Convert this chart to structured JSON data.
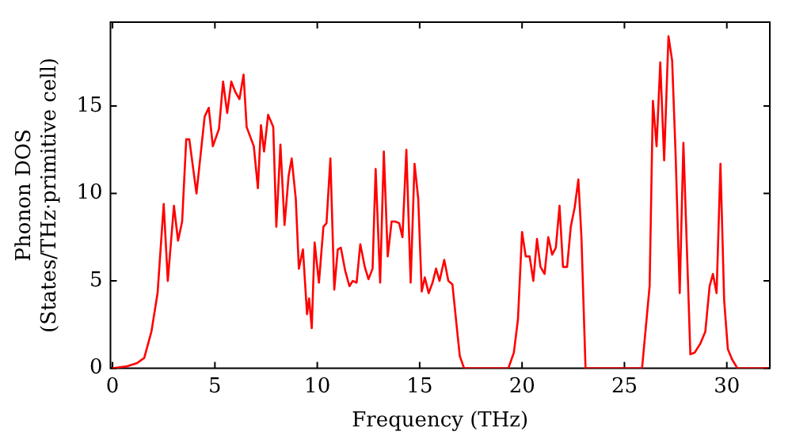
{
  "chart_data": {
    "type": "line",
    "xlabel": "Frequency (THz)",
    "ylabel": "Phonon DOS\n(States/THz·primitive cell)",
    "xlim": [
      -0.1,
      32.1
    ],
    "ylim": [
      0,
      19.8
    ],
    "xticks": [
      0,
      5,
      10,
      15,
      20,
      25,
      30
    ],
    "yticks": [
      0,
      5,
      10,
      15
    ],
    "grid": false,
    "legend": false,
    "marker": "none",
    "line_style": "solid",
    "series": [
      {
        "color": "#ff0000",
        "x": [
          0,
          0.65,
          1.2,
          1.55,
          1.9,
          2.2,
          2.5,
          2.7,
          3.0,
          3.2,
          3.4,
          3.6,
          3.75,
          4.1,
          4.5,
          4.7,
          4.9,
          5.2,
          5.4,
          5.6,
          5.8,
          6.0,
          6.2,
          6.4,
          6.55,
          6.9,
          7.1,
          7.25,
          7.4,
          7.6,
          7.85,
          8.0,
          8.2,
          8.4,
          8.6,
          8.75,
          8.95,
          9.1,
          9.3,
          9.5,
          9.6,
          9.73,
          9.87,
          10.08,
          10.3,
          10.45,
          10.64,
          10.83,
          11.0,
          11.15,
          11.36,
          11.57,
          11.73,
          11.92,
          12.1,
          12.32,
          12.5,
          12.7,
          12.85,
          13.07,
          13.25,
          13.44,
          13.63,
          13.8,
          14.0,
          14.16,
          14.35,
          14.56,
          14.75,
          14.93,
          15.1,
          15.25,
          15.44,
          15.63,
          15.8,
          15.97,
          16.2,
          16.4,
          16.6,
          16.8,
          16.96,
          17.17,
          19.33,
          19.6,
          19.8,
          20.0,
          20.18,
          20.37,
          20.55,
          20.73,
          20.9,
          21.1,
          21.28,
          21.47,
          21.65,
          21.83,
          22.0,
          22.2,
          22.38,
          22.57,
          22.75,
          22.9,
          23.1,
          25.86,
          26.23,
          26.39,
          26.57,
          26.75,
          26.94,
          27.15,
          27.33,
          27.5,
          27.7,
          27.88,
          28.06,
          28.22,
          28.43,
          28.7,
          28.95,
          29.16,
          29.32,
          29.5,
          29.69,
          29.87,
          30.05,
          30.26,
          30.52,
          32.0
        ],
        "values": [
          0,
          0.1,
          0.3,
          0.6,
          2.1,
          4.3,
          9.4,
          5.0,
          9.3,
          7.3,
          8.4,
          13.1,
          13.1,
          10.0,
          14.4,
          14.9,
          12.7,
          13.7,
          16.4,
          14.6,
          16.4,
          15.8,
          15.4,
          16.8,
          13.8,
          12.7,
          10.3,
          13.9,
          12.4,
          14.5,
          13.8,
          8.1,
          12.8,
          8.2,
          11.0,
          12.0,
          9.7,
          5.7,
          6.8,
          3.1,
          4.0,
          2.3,
          7.2,
          4.9,
          8.1,
          8.3,
          12.0,
          4.5,
          6.8,
          6.9,
          5.6,
          4.7,
          5.0,
          4.9,
          7.1,
          5.8,
          5.1,
          5.7,
          11.4,
          4.9,
          12.4,
          6.4,
          8.4,
          8.4,
          8.3,
          7.5,
          12.5,
          4.9,
          11.7,
          9.7,
          4.4,
          5.2,
          4.3,
          4.9,
          5.7,
          5.0,
          6.2,
          5.0,
          4.8,
          2.5,
          0.7,
          0,
          0,
          0.9,
          2.8,
          7.8,
          6.4,
          6.4,
          5.0,
          7.4,
          5.8,
          5.4,
          7.5,
          6.5,
          6.9,
          9.3,
          5.8,
          5.8,
          8.1,
          9.2,
          10.8,
          7.5,
          0,
          0,
          4.7,
          15.3,
          12.7,
          17.5,
          11.9,
          19.0,
          17.6,
          12.2,
          4.3,
          12.9,
          6.5,
          0.8,
          0.9,
          1.4,
          2.1,
          4.7,
          5.4,
          4.3,
          11.7,
          3.9,
          1.1,
          0.5,
          0,
          0
        ]
      }
    ]
  }
}
